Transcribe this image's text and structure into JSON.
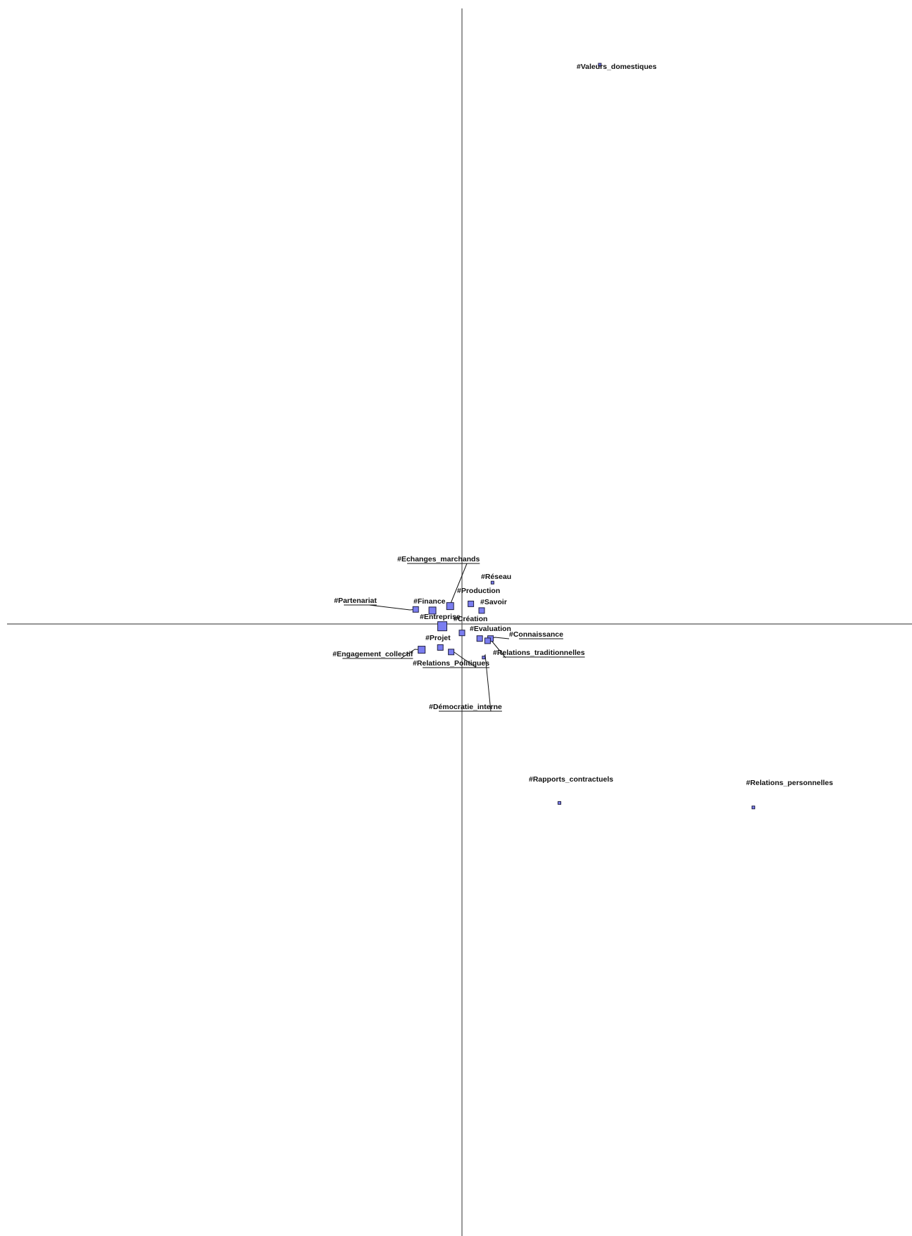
{
  "chart_data": {
    "type": "scatter",
    "title": "",
    "xlabel": "",
    "ylabel": "",
    "axes_lines": "cross-at-origin",
    "grid": false,
    "legend": "none",
    "colors": {
      "marker_fill": "#7b7ef0",
      "marker_stroke": "#1f1f3f",
      "axis": "#555555",
      "text": "#111111"
    },
    "points": [
      {
        "label": "#Valeurs_domestiques",
        "x": 14.0,
        "y": 50.0,
        "size": 1
      },
      {
        "label": "#Echanges_marchands",
        "x": -1.2,
        "y": 1.6,
        "size": 3
      },
      {
        "label": "#Réseau",
        "x": 3.1,
        "y": 3.7,
        "size": 1
      },
      {
        "label": "#Production",
        "x": 0.9,
        "y": 1.8,
        "size": 2
      },
      {
        "label": "#Savoir",
        "x": 2.0,
        "y": 1.2,
        "size": 2
      },
      {
        "label": "#Partenariat",
        "x": -4.7,
        "y": 1.3,
        "size": 2
      },
      {
        "label": "#Finance",
        "x": -3.0,
        "y": 1.2,
        "size": 3
      },
      {
        "label": "#Entreprise",
        "x": -2.0,
        "y": -0.2,
        "size": 4
      },
      {
        "label": "#Création",
        "x": 0.0,
        "y": -0.8,
        "size": 2
      },
      {
        "label": "#Evaluation",
        "x": 1.8,
        "y": -1.3,
        "size": 2
      },
      {
        "label": "#Connaissance",
        "x": 2.9,
        "y": -1.3,
        "size": 2
      },
      {
        "label": "#Relations_traditionnelles",
        "x": 2.6,
        "y": -1.5,
        "size": 2
      },
      {
        "label": "#Projet",
        "x": -2.2,
        "y": -2.1,
        "size": 2
      },
      {
        "label": "#Engagement_collectif",
        "x": -4.1,
        "y": -2.3,
        "size": 3
      },
      {
        "label": "#Relations_Politiques",
        "x": -1.1,
        "y": -2.5,
        "size": 2
      },
      {
        "label": "#Démocratie_interne",
        "x": 2.2,
        "y": -3.0,
        "size": 1
      },
      {
        "label": "#Rapports_contractuels",
        "x": 9.9,
        "y": -16.0,
        "size": 1
      },
      {
        "label": "#Relations_personnelles",
        "x": 29.6,
        "y": -16.4,
        "size": 1
      }
    ]
  }
}
